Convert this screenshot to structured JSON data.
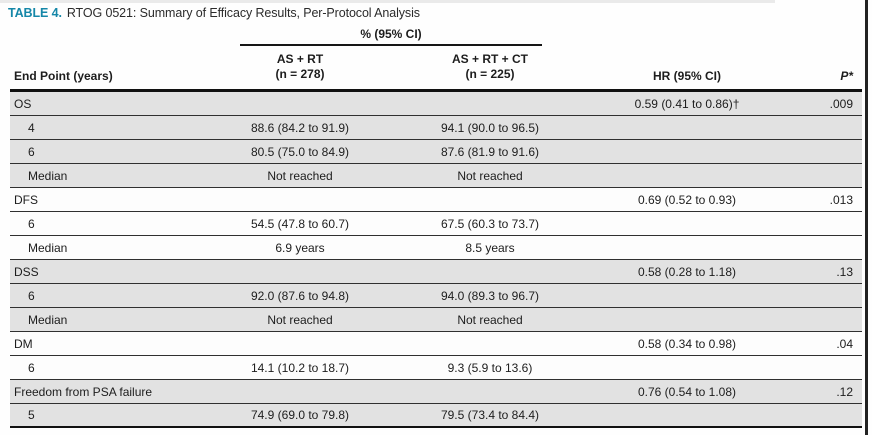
{
  "caption": {
    "label": "TABLE 4.",
    "title": "RTOG 0521: Summary of Efficacy Results, Per-Protocol Analysis"
  },
  "table": {
    "span_header": "% (95% CI)",
    "col_endpoint": "End Point (years)",
    "col_as_rt_line1": "AS + RT",
    "col_as_rt_line2": "(n = 278)",
    "col_as_rt_ct_line1": "AS + RT + CT",
    "col_as_rt_ct_line2": "(n = 225)",
    "col_hr": "HR (95% CI)",
    "col_p": "P*",
    "rows": [
      {
        "endpoint": "OS",
        "indent": false,
        "shaded": true,
        "as_rt": "",
        "as_rt_ct": "",
        "hr": "0.59 (0.41 to 0.86)†",
        "p": ".009"
      },
      {
        "endpoint": "4",
        "indent": true,
        "shaded": true,
        "as_rt": "88.6 (84.2 to 91.9)",
        "as_rt_ct": "94.1 (90.0 to 96.5)",
        "hr": "",
        "p": ""
      },
      {
        "endpoint": "6",
        "indent": true,
        "shaded": true,
        "as_rt": "80.5 (75.0 to 84.9)",
        "as_rt_ct": "87.6 (81.9 to 91.6)",
        "hr": "",
        "p": ""
      },
      {
        "endpoint": "Median",
        "indent": true,
        "shaded": true,
        "as_rt": "Not reached",
        "as_rt_ct": "Not reached",
        "hr": "",
        "p": ""
      },
      {
        "endpoint": "DFS",
        "indent": false,
        "shaded": false,
        "as_rt": "",
        "as_rt_ct": "",
        "hr": "0.69 (0.52 to 0.93)",
        "p": ".013"
      },
      {
        "endpoint": "6",
        "indent": true,
        "shaded": false,
        "as_rt": "54.5 (47.8 to 60.7)",
        "as_rt_ct": "67.5 (60.3 to 73.7)",
        "hr": "",
        "p": ""
      },
      {
        "endpoint": "Median",
        "indent": true,
        "shaded": false,
        "as_rt": "6.9 years",
        "as_rt_ct": "8.5 years",
        "hr": "",
        "p": ""
      },
      {
        "endpoint": "DSS",
        "indent": false,
        "shaded": true,
        "as_rt": "",
        "as_rt_ct": "",
        "hr": "0.58 (0.28 to 1.18)",
        "p": ".13"
      },
      {
        "endpoint": "6",
        "indent": true,
        "shaded": true,
        "as_rt": "92.0 (87.6 to 94.8)",
        "as_rt_ct": "94.0 (89.3 to 96.7)",
        "hr": "",
        "p": ""
      },
      {
        "endpoint": "Median",
        "indent": true,
        "shaded": true,
        "as_rt": "Not reached",
        "as_rt_ct": "Not reached",
        "hr": "",
        "p": ""
      },
      {
        "endpoint": "DM",
        "indent": false,
        "shaded": false,
        "as_rt": "",
        "as_rt_ct": "",
        "hr": "0.58 (0.34 to 0.98)",
        "p": ".04"
      },
      {
        "endpoint": "6",
        "indent": true,
        "shaded": false,
        "as_rt": "14.1 (10.2 to 18.7)",
        "as_rt_ct": "9.3 (5.9 to 13.6)",
        "hr": "",
        "p": ""
      },
      {
        "endpoint": "Freedom from PSA failure",
        "indent": false,
        "shaded": true,
        "as_rt": "",
        "as_rt_ct": "",
        "hr": "0.76 (0.54 to 1.08)",
        "p": ".12"
      },
      {
        "endpoint": "5",
        "indent": true,
        "shaded": true,
        "as_rt": "74.9 (69.0 to 79.8)",
        "as_rt_ct": "79.5 (73.4 to 84.4)",
        "hr": "",
        "p": ""
      }
    ]
  },
  "colors": {
    "accent_teal": "#1587a8",
    "row_shade": "#e2e2e2",
    "rule_dark": "#111111"
  }
}
